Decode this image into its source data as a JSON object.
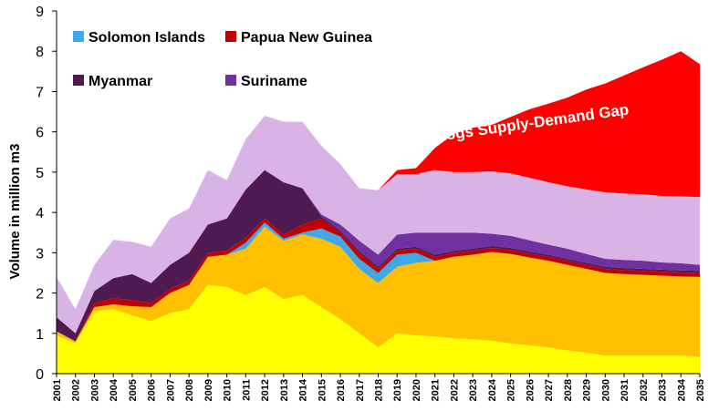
{
  "chart_data": {
    "type": "area",
    "stacked": true,
    "title": "",
    "xlabel": "",
    "ylabel": "Volume in million m3",
    "ylim": [
      0,
      9
    ],
    "yticks": [
      0,
      1,
      2,
      3,
      4,
      5,
      6,
      7,
      8,
      9
    ],
    "grid": false,
    "legend_position": "top-left",
    "x": [
      "2001",
      "2002",
      "2003",
      "2004",
      "2005",
      "2006",
      "2007",
      "2008",
      "2009",
      "2010",
      "2011",
      "2012",
      "2013",
      "2014",
      "2015",
      "2016",
      "2017",
      "2018",
      "2019",
      "2020",
      "2021",
      "2022",
      "2023",
      "2024",
      "2025",
      "2026",
      "2027",
      "2028",
      "2029",
      "2030",
      "2031",
      "2032",
      "2033",
      "2034",
      "2035"
    ],
    "series": [
      {
        "name": "",
        "color": "#ffff00",
        "values": [
          0.95,
          0.75,
          1.55,
          1.6,
          1.45,
          1.3,
          1.5,
          1.6,
          2.2,
          2.15,
          1.95,
          2.15,
          1.85,
          1.95,
          1.65,
          1.35,
          1.0,
          0.65,
          1.0,
          0.95,
          0.92,
          0.88,
          0.85,
          0.82,
          0.75,
          0.7,
          0.65,
          0.58,
          0.52,
          0.45,
          0.45,
          0.45,
          0.45,
          0.45,
          0.42
        ]
      },
      {
        "name": "",
        "color": "#ffc000",
        "values": [
          0.1,
          0.05,
          0.1,
          0.12,
          0.22,
          0.35,
          0.5,
          0.6,
          0.7,
          0.8,
          1.15,
          1.5,
          1.45,
          1.5,
          1.7,
          1.8,
          1.6,
          1.6,
          1.65,
          1.8,
          1.88,
          2.02,
          2.1,
          2.2,
          2.22,
          2.18,
          2.15,
          2.12,
          2.08,
          2.05,
          2.02,
          2.0,
          1.98,
          1.96,
          1.98
        ]
      },
      {
        "name": "Solomon Islands",
        "color": "#41a8e8",
        "values": [
          0.0,
          0.0,
          0.0,
          0.0,
          0.0,
          0.0,
          0.0,
          0.0,
          0.0,
          0.0,
          0.15,
          0.1,
          0.05,
          0.05,
          0.25,
          0.25,
          0.25,
          0.25,
          0.3,
          0.25,
          0.0,
          0.0,
          0.0,
          0.0,
          0.0,
          0.0,
          0.0,
          0.0,
          0.0,
          0.0,
          0.0,
          0.0,
          0.0,
          0.0,
          0.0
        ]
      },
      {
        "name": "Papua New Guinea",
        "color": "#c00000",
        "values": [
          0.0,
          0.0,
          0.1,
          0.15,
          0.15,
          0.1,
          0.1,
          0.1,
          0.1,
          0.1,
          0.12,
          0.1,
          0.1,
          0.2,
          0.25,
          0.1,
          0.15,
          0.1,
          0.1,
          0.1,
          0.1,
          0.1,
          0.1,
          0.1,
          0.1,
          0.1,
          0.1,
          0.1,
          0.1,
          0.1,
          0.1,
          0.1,
          0.1,
          0.1,
          0.1
        ]
      },
      {
        "name": "Myanmar",
        "color": "#4f1a4f",
        "values": [
          0.35,
          0.2,
          0.3,
          0.5,
          0.65,
          0.5,
          0.6,
          0.7,
          0.7,
          0.8,
          1.2,
          1.2,
          1.3,
          0.9,
          0.05,
          0.05,
          0.05,
          0.05,
          0.05,
          0.05,
          0.05,
          0.05,
          0.05,
          0.05,
          0.05,
          0.05,
          0.05,
          0.05,
          0.05,
          0.05,
          0.05,
          0.05,
          0.05,
          0.05,
          0.05
        ]
      },
      {
        "name": "Suriname",
        "color": "#7030a0",
        "values": [
          0.0,
          0.0,
          0.0,
          0.0,
          0.0,
          0.0,
          0.0,
          0.0,
          0.0,
          0.0,
          0.0,
          0.0,
          0.0,
          0.0,
          0.05,
          0.15,
          0.25,
          0.3,
          0.35,
          0.35,
          0.55,
          0.45,
          0.4,
          0.3,
          0.3,
          0.28,
          0.25,
          0.25,
          0.22,
          0.2,
          0.2,
          0.2,
          0.18,
          0.18,
          0.15
        ]
      },
      {
        "name": "",
        "color": "#d9b3e6",
        "values": [
          1.0,
          0.6,
          0.65,
          0.95,
          0.8,
          0.9,
          1.15,
          1.1,
          1.35,
          0.95,
          1.25,
          1.35,
          1.5,
          1.65,
          1.7,
          1.5,
          1.3,
          1.6,
          1.5,
          1.45,
          1.55,
          1.5,
          1.5,
          1.55,
          1.55,
          1.55,
          1.55,
          1.55,
          1.6,
          1.65,
          1.65,
          1.65,
          1.65,
          1.66,
          1.68
        ]
      },
      {
        "name": "Logs Supply-Demand Gap",
        "color": "#ff0000",
        "values": [
          0,
          0,
          0,
          0,
          0,
          0,
          0,
          0,
          0,
          0,
          0,
          0,
          0,
          0,
          0,
          0,
          0,
          0,
          0.1,
          0.15,
          0.55,
          0.95,
          1.1,
          1.15,
          1.4,
          1.7,
          1.95,
          2.2,
          2.48,
          2.7,
          2.93,
          3.15,
          3.38,
          3.6,
          3.3
        ]
      }
    ],
    "legend": [
      "Solomon Islands",
      "Papua New Guinea",
      "Myanmar",
      "Suriname"
    ],
    "annotation": {
      "text": "Logs Supply-Demand Gap",
      "x": "2029",
      "y": 6.1,
      "rotation_deg": -8
    }
  }
}
